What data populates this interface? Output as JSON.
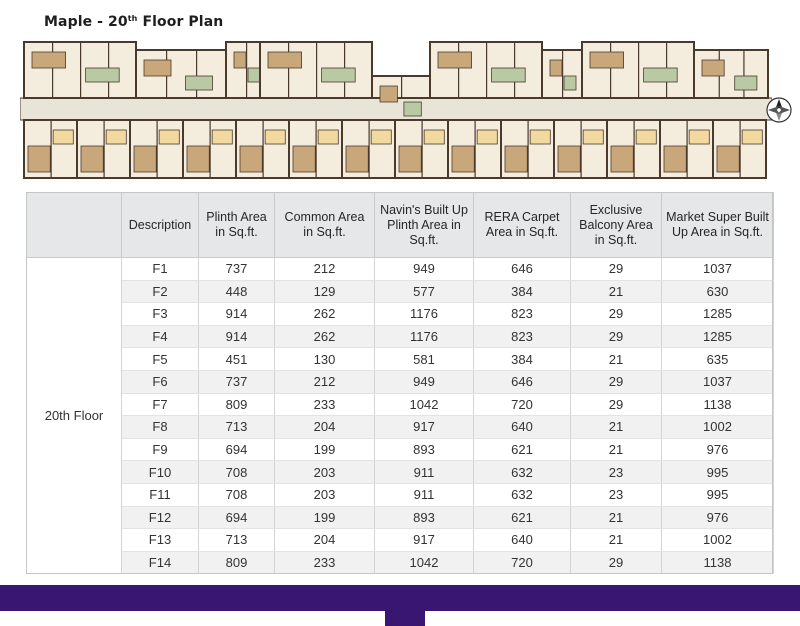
{
  "page_title": {
    "prefix": "Maple - 20",
    "sup": "th",
    "suffix": " Floor Plan"
  },
  "table": {
    "headers": [
      "",
      "Description",
      "Plinth Area in Sq.ft.",
      "Common Area in Sq.ft.",
      "Navin's Built Up Plinth Area in Sq.ft.",
      "RERA Carpet Area in Sq.ft.",
      "Exclusive Balcony Area in Sq.ft.",
      "Market Super Built Up Area in Sq.ft."
    ],
    "floor_label": "20th Floor",
    "rows": [
      [
        "F1",
        "737",
        "212",
        "949",
        "646",
        "29",
        "1037"
      ],
      [
        "F2",
        "448",
        "129",
        "577",
        "384",
        "21",
        "630"
      ],
      [
        "F3",
        "914",
        "262",
        "1176",
        "823",
        "29",
        "1285"
      ],
      [
        "F4",
        "914",
        "262",
        "1176",
        "823",
        "29",
        "1285"
      ],
      [
        "F5",
        "451",
        "130",
        "581",
        "384",
        "21",
        "635"
      ],
      [
        "F6",
        "737",
        "212",
        "949",
        "646",
        "29",
        "1037"
      ],
      [
        "F7",
        "809",
        "233",
        "1042",
        "720",
        "29",
        "1138"
      ],
      [
        "F8",
        "713",
        "204",
        "917",
        "640",
        "21",
        "1002"
      ],
      [
        "F9",
        "694",
        "199",
        "893",
        "621",
        "21",
        "976"
      ],
      [
        "F10",
        "708",
        "203",
        "911",
        "632",
        "23",
        "995"
      ],
      [
        "F11",
        "708",
        "203",
        "911",
        "632",
        "23",
        "995"
      ],
      [
        "F12",
        "694",
        "199",
        "893",
        "621",
        "21",
        "976"
      ],
      [
        "F13",
        "713",
        "204",
        "917",
        "640",
        "21",
        "1002"
      ],
      [
        "F14",
        "809",
        "233",
        "1042",
        "720",
        "29",
        "1138"
      ]
    ]
  },
  "colors": {
    "header_bg": "#e6e7e8",
    "stripe_bg": "#f1f1f2",
    "bottom_bar": "#3a1673",
    "plan_wall": "#4a3a2e",
    "plan_room": "#f4ecdc",
    "plan_floor_wood": "#c8a77b",
    "plan_corridor": "#e9e4d8"
  },
  "icons": {
    "compass": "north-compass-icon"
  }
}
